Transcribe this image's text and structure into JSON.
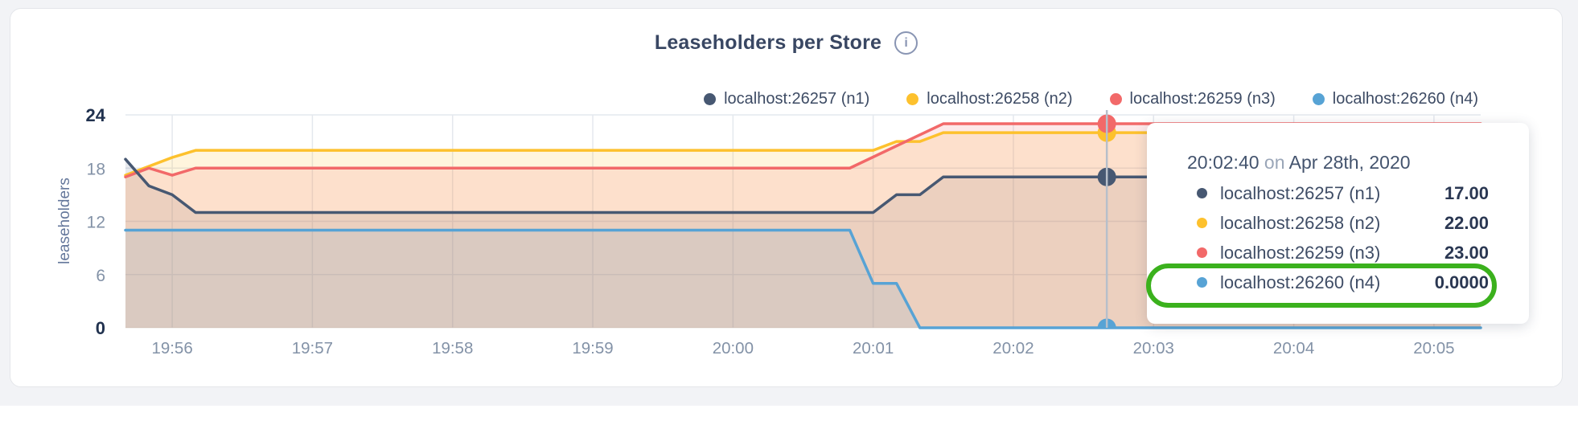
{
  "header": {
    "title": "Leaseholders per Store",
    "info_glyph": "i"
  },
  "legend": {
    "items": [
      {
        "label": "localhost:26257 (n1)",
        "color": "#475872"
      },
      {
        "label": "localhost:26258 (n2)",
        "color": "#FDC12D"
      },
      {
        "label": "localhost:26259 (n3)",
        "color": "#F26969"
      },
      {
        "label": "localhost:26260 (n4)",
        "color": "#57A3D5"
      }
    ]
  },
  "tooltip": {
    "time": "20:02:40",
    "on_word": "on",
    "date": "Apr 28th, 2020",
    "rows": [
      {
        "label": "localhost:26257 (n1)",
        "value": "17.00",
        "color": "#475872"
      },
      {
        "label": "localhost:26258 (n2)",
        "value": "22.00",
        "color": "#FDC12D"
      },
      {
        "label": "localhost:26259 (n3)",
        "value": "23.00",
        "color": "#F26969"
      },
      {
        "label": "localhost:26260 (n4)",
        "value": "0.0000",
        "color": "#57A3D5"
      }
    ],
    "highlighted_row_index": 3,
    "highlight_color": "#3BB11D"
  },
  "chart_data": {
    "type": "area",
    "title": "Leaseholders per Store",
    "ylabel": "leaseholders",
    "ylim": [
      0,
      24
    ],
    "y_ticks": [
      0,
      6,
      12,
      18,
      24
    ],
    "grid": true,
    "legend_position": "top-right",
    "x_window": {
      "start_label": "19:55:40",
      "end_label": "20:05:20",
      "start_offset_sec": 0,
      "end_offset_sec": 580
    },
    "x_ticks": [
      {
        "label": "19:56",
        "t": 20
      },
      {
        "label": "19:57",
        "t": 80
      },
      {
        "label": "19:58",
        "t": 140
      },
      {
        "label": "19:59",
        "t": 200
      },
      {
        "label": "20:00",
        "t": 260
      },
      {
        "label": "20:01",
        "t": 320
      },
      {
        "label": "20:02",
        "t": 380
      },
      {
        "label": "20:03",
        "t": 440
      },
      {
        "label": "20:04",
        "t": 500
      },
      {
        "label": "20:05",
        "t": 560
      }
    ],
    "series": [
      {
        "name": "localhost:26257 (n1)",
        "color": "#475872",
        "points": [
          [
            0,
            19
          ],
          [
            10,
            16
          ],
          [
            20,
            15
          ],
          [
            30,
            13
          ],
          [
            320,
            13
          ],
          [
            330,
            15
          ],
          [
            340,
            15
          ],
          [
            350,
            17
          ],
          [
            580,
            17
          ]
        ]
      },
      {
        "name": "localhost:26258 (n2)",
        "color": "#FDC12D",
        "points": [
          [
            0,
            17.2
          ],
          [
            20,
            19.2
          ],
          [
            30,
            20
          ],
          [
            320,
            20
          ],
          [
            330,
            21
          ],
          [
            340,
            21
          ],
          [
            350,
            22
          ],
          [
            580,
            22
          ]
        ]
      },
      {
        "name": "localhost:26259 (n3)",
        "color": "#F26969",
        "points": [
          [
            0,
            17
          ],
          [
            10,
            18
          ],
          [
            20,
            17.2
          ],
          [
            30,
            18
          ],
          [
            310,
            18
          ],
          [
            350,
            23
          ],
          [
            580,
            23
          ]
        ]
      },
      {
        "name": "localhost:26260 (n4)",
        "color": "#57A3D5",
        "points": [
          [
            0,
            11
          ],
          [
            310,
            11
          ],
          [
            320,
            5
          ],
          [
            330,
            5
          ],
          [
            340,
            0
          ],
          [
            580,
            0
          ]
        ]
      }
    ],
    "hover": {
      "t": 420,
      "time_label": "20:02:40",
      "date_label": "Apr 28th, 2020",
      "values": [
        17,
        22,
        23,
        0
      ]
    }
  }
}
